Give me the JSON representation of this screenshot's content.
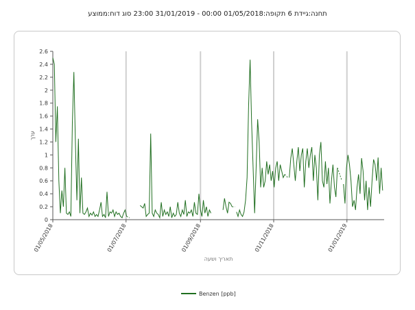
{
  "chart_title": "תחנה:גיידת 6 תקופה:01/05/2018 00:00 - 31/01/2019 23:00 סוג דוח:ממוצע",
  "chart_data": {
    "type": "line",
    "title": "תחנה:גיידת 6 תקופה:01/05/2018 00:00 - 31/01/2019 23:00 סוג דוח:ממוצע",
    "xlabel": "תאריך ושעה",
    "ylabel": "ערך",
    "ylim": [
      0,
      2.6
    ],
    "yticks": [
      "0",
      "0.2",
      "0.4",
      "0.6",
      "0.8",
      "1",
      "1.2",
      "1.4",
      "1.6",
      "1.8",
      "2",
      "2.2",
      "2.4",
      "2.6"
    ],
    "xticks": [
      "01/05/2018",
      "01/07/2018",
      "01/09/2018",
      "01/11/2018",
      "01/01/2019"
    ],
    "grid": "vertical",
    "legend_position": "bottom",
    "color": "#1f6e1f",
    "series": [
      {
        "name": "Benzen [ppb]",
        "segments": [
          [
            [
              0,
              2.5
            ],
            [
              1,
              2.4
            ],
            [
              2,
              1.2
            ],
            [
              3,
              1.75
            ],
            [
              4,
              0.6
            ],
            [
              5,
              0.1
            ],
            [
              6,
              0.45
            ],
            [
              7,
              0.2
            ],
            [
              8,
              0.8
            ],
            [
              9,
              0.1
            ],
            [
              10,
              0.08
            ],
            [
              11,
              0.12
            ],
            [
              12,
              0.05
            ],
            [
              13,
              1.5
            ],
            [
              14,
              2.28
            ],
            [
              15,
              1.2
            ],
            [
              16,
              0.3
            ],
            [
              17,
              1.25
            ],
            [
              18,
              0.1
            ],
            [
              19,
              0.65
            ],
            [
              20,
              0.1
            ],
            [
              21,
              0.08
            ],
            [
              22,
              0.12
            ],
            [
              23,
              0.18
            ],
            [
              24,
              0.05
            ],
            [
              25,
              0.1
            ],
            [
              26,
              0.07
            ],
            [
              27,
              0.12
            ],
            [
              28,
              0.05
            ],
            [
              29,
              0.08
            ],
            [
              30,
              0.05
            ],
            [
              31,
              0.15
            ],
            [
              32,
              0.27
            ],
            [
              33,
              0.05
            ],
            [
              34,
              0.08
            ],
            [
              35,
              0.03
            ],
            [
              36,
              0.43
            ],
            [
              37,
              0.05
            ],
            [
              38,
              0.12
            ],
            [
              39,
              0.1
            ],
            [
              40,
              0.15
            ],
            [
              41,
              0.05
            ],
            [
              42,
              0.12
            ],
            [
              43,
              0.08
            ],
            [
              44,
              0.1
            ],
            [
              45,
              0.05
            ],
            [
              46,
              0.03
            ],
            [
              47,
              0.1
            ],
            [
              48,
              0.15
            ],
            [
              49,
              0.05
            ]
          ],
          [
            [
              58,
              0.22
            ],
            [
              59,
              0.2
            ],
            [
              60,
              0.18
            ],
            [
              61,
              0.25
            ],
            [
              62,
              0.05
            ],
            [
              63,
              0.08
            ],
            [
              64,
              0.1
            ],
            [
              65,
              1.33
            ],
            [
              66,
              0.1
            ],
            [
              67,
              0.05
            ],
            [
              68,
              0.15
            ],
            [
              69,
              0.1
            ],
            [
              70,
              0.08
            ],
            [
              71,
              0.03
            ],
            [
              72,
              0.27
            ],
            [
              73,
              0.05
            ],
            [
              74,
              0.15
            ],
            [
              75,
              0.08
            ],
            [
              76,
              0.12
            ],
            [
              77,
              0.05
            ],
            [
              78,
              0.2
            ],
            [
              79,
              0.03
            ],
            [
              80,
              0.1
            ],
            [
              81,
              0.05
            ],
            [
              82,
              0.08
            ],
            [
              83,
              0.27
            ],
            [
              84,
              0.1
            ],
            [
              85,
              0.05
            ],
            [
              86,
              0.15
            ],
            [
              87,
              0.08
            ],
            [
              88,
              0.3
            ],
            [
              89,
              0.05
            ],
            [
              90,
              0.12
            ],
            [
              91,
              0.1
            ],
            [
              92,
              0.15
            ],
            [
              93,
              0.05
            ],
            [
              94,
              0.27
            ],
            [
              95,
              0.1
            ],
            [
              96,
              0.08
            ],
            [
              97,
              0.4
            ],
            [
              98,
              0.15
            ],
            [
              99,
              0.05
            ],
            [
              100,
              0.3
            ],
            [
              101,
              0.1
            ],
            [
              102,
              0.2
            ],
            [
              103,
              0.05
            ],
            [
              104,
              0.15
            ],
            [
              105,
              0.1
            ]
          ],
          [
            [
              113,
              0.15
            ],
            [
              114,
              0.33
            ],
            [
              115,
              0.2
            ],
            [
              116,
              0.1
            ],
            [
              117,
              0.27
            ],
            [
              118,
              0.25
            ],
            [
              119,
              0.2
            ]
          ],
          [
            [
              122,
              0.12
            ],
            [
              123,
              0.05
            ],
            [
              124,
              0.15
            ],
            [
              125,
              0.08
            ],
            [
              126,
              0.05
            ],
            [
              127,
              0.12
            ],
            [
              128,
              0.3
            ],
            [
              129,
              0.65
            ],
            [
              130,
              1.75
            ],
            [
              131,
              2.47
            ],
            [
              132,
              1.5
            ],
            [
              133,
              0.8
            ],
            [
              134,
              0.1
            ],
            [
              135,
              0.8
            ],
            [
              136,
              1.55
            ],
            [
              137,
              1.2
            ],
            [
              138,
              0.5
            ],
            [
              139,
              0.8
            ],
            [
              140,
              0.5
            ],
            [
              141,
              0.6
            ],
            [
              142,
              0.9
            ],
            [
              143,
              0.7
            ],
            [
              144,
              0.85
            ],
            [
              145,
              0.6
            ],
            [
              146,
              0.75
            ],
            [
              147,
              0.5
            ],
            [
              148,
              0.8
            ],
            [
              149,
              0.9
            ],
            [
              150,
              0.6
            ],
            [
              151,
              0.85
            ],
            [
              152,
              0.75
            ],
            [
              153,
              0.65
            ],
            [
              154,
              0.7
            ]
          ],
          [
            [
              157,
              0.65
            ],
            [
              158,
              0.95
            ],
            [
              159,
              1.1
            ],
            [
              160,
              0.85
            ],
            [
              161,
              0.6
            ],
            [
              162,
              0.9
            ],
            [
              163,
              1.12
            ],
            [
              164,
              0.75
            ],
            [
              165,
              1.0
            ],
            [
              166,
              1.1
            ],
            [
              167,
              0.5
            ],
            [
              168,
              0.9
            ],
            [
              169,
              1.1
            ],
            [
              170,
              0.8
            ],
            [
              171,
              1.0
            ],
            [
              172,
              1.12
            ],
            [
              173,
              0.6
            ],
            [
              174,
              1.0
            ],
            [
              175,
              0.8
            ],
            [
              176,
              0.3
            ],
            [
              177,
              1.0
            ],
            [
              178,
              1.2
            ],
            [
              179,
              0.6
            ],
            [
              180,
              0.5
            ],
            [
              181,
              0.9
            ],
            [
              182,
              0.55
            ],
            [
              183,
              0.8
            ],
            [
              184,
              0.25
            ],
            [
              185,
              0.6
            ],
            [
              186,
              0.85
            ],
            [
              187,
              0.5
            ],
            [
              188,
              0.35
            ],
            [
              189,
              0.8
            ]
          ],
          [
            [
              193,
              0.55
            ],
            [
              194,
              0.25
            ],
            [
              195,
              0.8
            ],
            [
              196,
              1.0
            ],
            [
              197,
              0.85
            ],
            [
              198,
              0.6
            ],
            [
              199,
              0.2
            ],
            [
              200,
              0.3
            ],
            [
              201,
              0.15
            ],
            [
              202,
              0.5
            ],
            [
              203,
              0.7
            ],
            [
              204,
              0.4
            ],
            [
              205,
              0.95
            ],
            [
              206,
              0.75
            ],
            [
              207,
              0.3
            ],
            [
              208,
              0.6
            ],
            [
              209,
              0.15
            ],
            [
              210,
              0.5
            ],
            [
              211,
              0.2
            ],
            [
              212,
              0.6
            ],
            [
              213,
              0.93
            ],
            [
              214,
              0.85
            ],
            [
              215,
              0.6
            ],
            [
              216,
              0.96
            ],
            [
              217,
              0.4
            ],
            [
              218,
              0.8
            ],
            [
              219,
              0.45
            ]
          ]
        ]
      }
    ],
    "dashed_gaps": [
      [
        [
          49,
          0.05
        ],
        [
          51,
          0.03
        ]
      ],
      [
        [
          119,
          0.2
        ],
        [
          121,
          0.2
        ]
      ],
      [
        [
          154,
          0.7
        ],
        [
          156,
          0.65
        ]
      ],
      [
        [
          189,
          0.8
        ],
        [
          192,
          0.6
        ]
      ]
    ]
  }
}
